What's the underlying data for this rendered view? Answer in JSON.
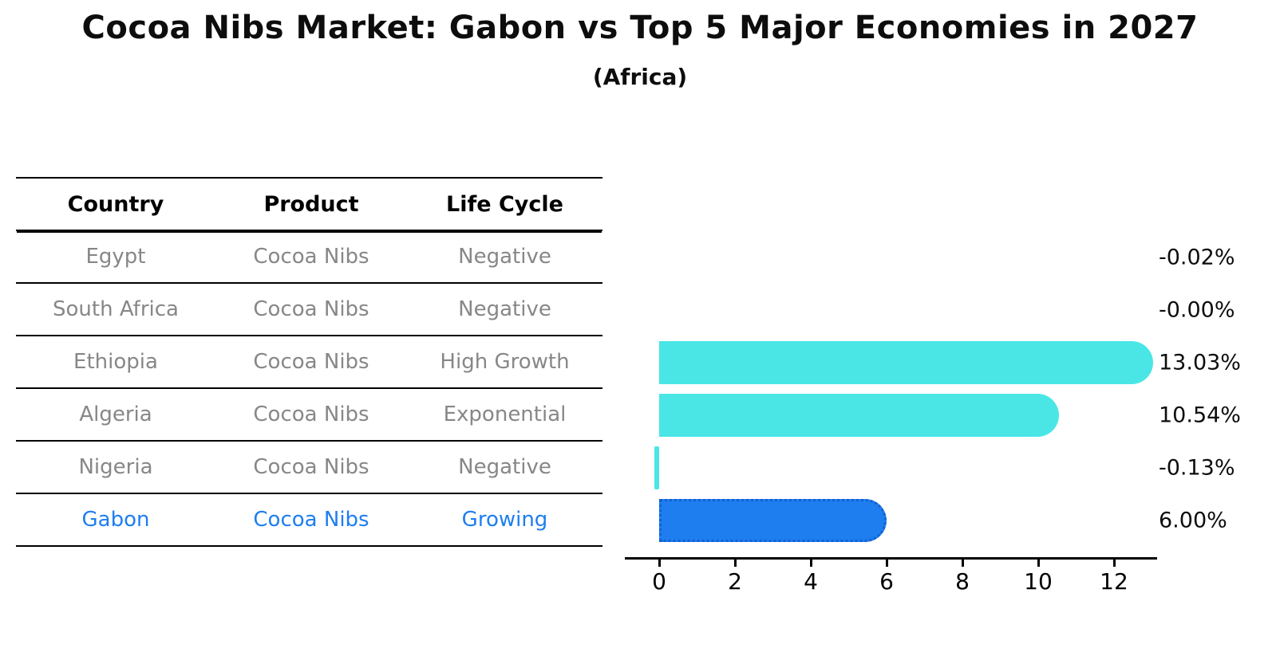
{
  "title": "Cocoa Nibs Market: Gabon vs Top 5 Major Economies in 2027",
  "subtitle": "(Africa)",
  "table": {
    "headers": [
      "Country",
      "Product",
      "Life Cycle"
    ],
    "rows": [
      {
        "country": "Egypt",
        "product": "Cocoa Nibs",
        "life_cycle": "Negative",
        "highlight": false
      },
      {
        "country": "South Africa",
        "product": "Cocoa Nibs",
        "life_cycle": "Negative",
        "highlight": false
      },
      {
        "country": "Ethiopia",
        "product": "Cocoa Nibs",
        "life_cycle": "High Growth",
        "highlight": false
      },
      {
        "country": "Algeria",
        "product": "Cocoa Nibs",
        "life_cycle": "Exponential",
        "highlight": false
      },
      {
        "country": "Nigeria",
        "product": "Cocoa Nibs",
        "life_cycle": "Negative",
        "highlight": false
      },
      {
        "country": "Gabon",
        "product": "Cocoa Nibs",
        "life_cycle": "Growing",
        "highlight": true
      }
    ]
  },
  "chart_data": {
    "type": "bar",
    "orientation": "horizontal",
    "title": "Cocoa Nibs Market: Gabon vs Top 5 Major Economies in 2027",
    "subtitle": "(Africa)",
    "categories": [
      "Egypt",
      "South Africa",
      "Ethiopia",
      "Algeria",
      "Nigeria",
      "Gabon"
    ],
    "values": [
      -0.02,
      -0.0,
      13.03,
      10.54,
      -0.13,
      6.0
    ],
    "value_labels": [
      "-0.02%",
      "-0.00%",
      "13.03%",
      "10.54%",
      "-0.13%",
      "6.00%"
    ],
    "x_ticks": [
      0,
      2,
      4,
      6,
      8,
      10,
      12
    ],
    "xlim": [
      -1,
      13.3
    ],
    "grid": false,
    "legend": false,
    "bar_color": "#4ae6e6",
    "highlight_index": 5,
    "highlight_color": "#1e7ef0",
    "highlight_border_color": "#1260d0"
  },
  "colors": {
    "text_muted": "#878787",
    "text_highlight": "#1e7ef0",
    "axis": "#000000"
  }
}
